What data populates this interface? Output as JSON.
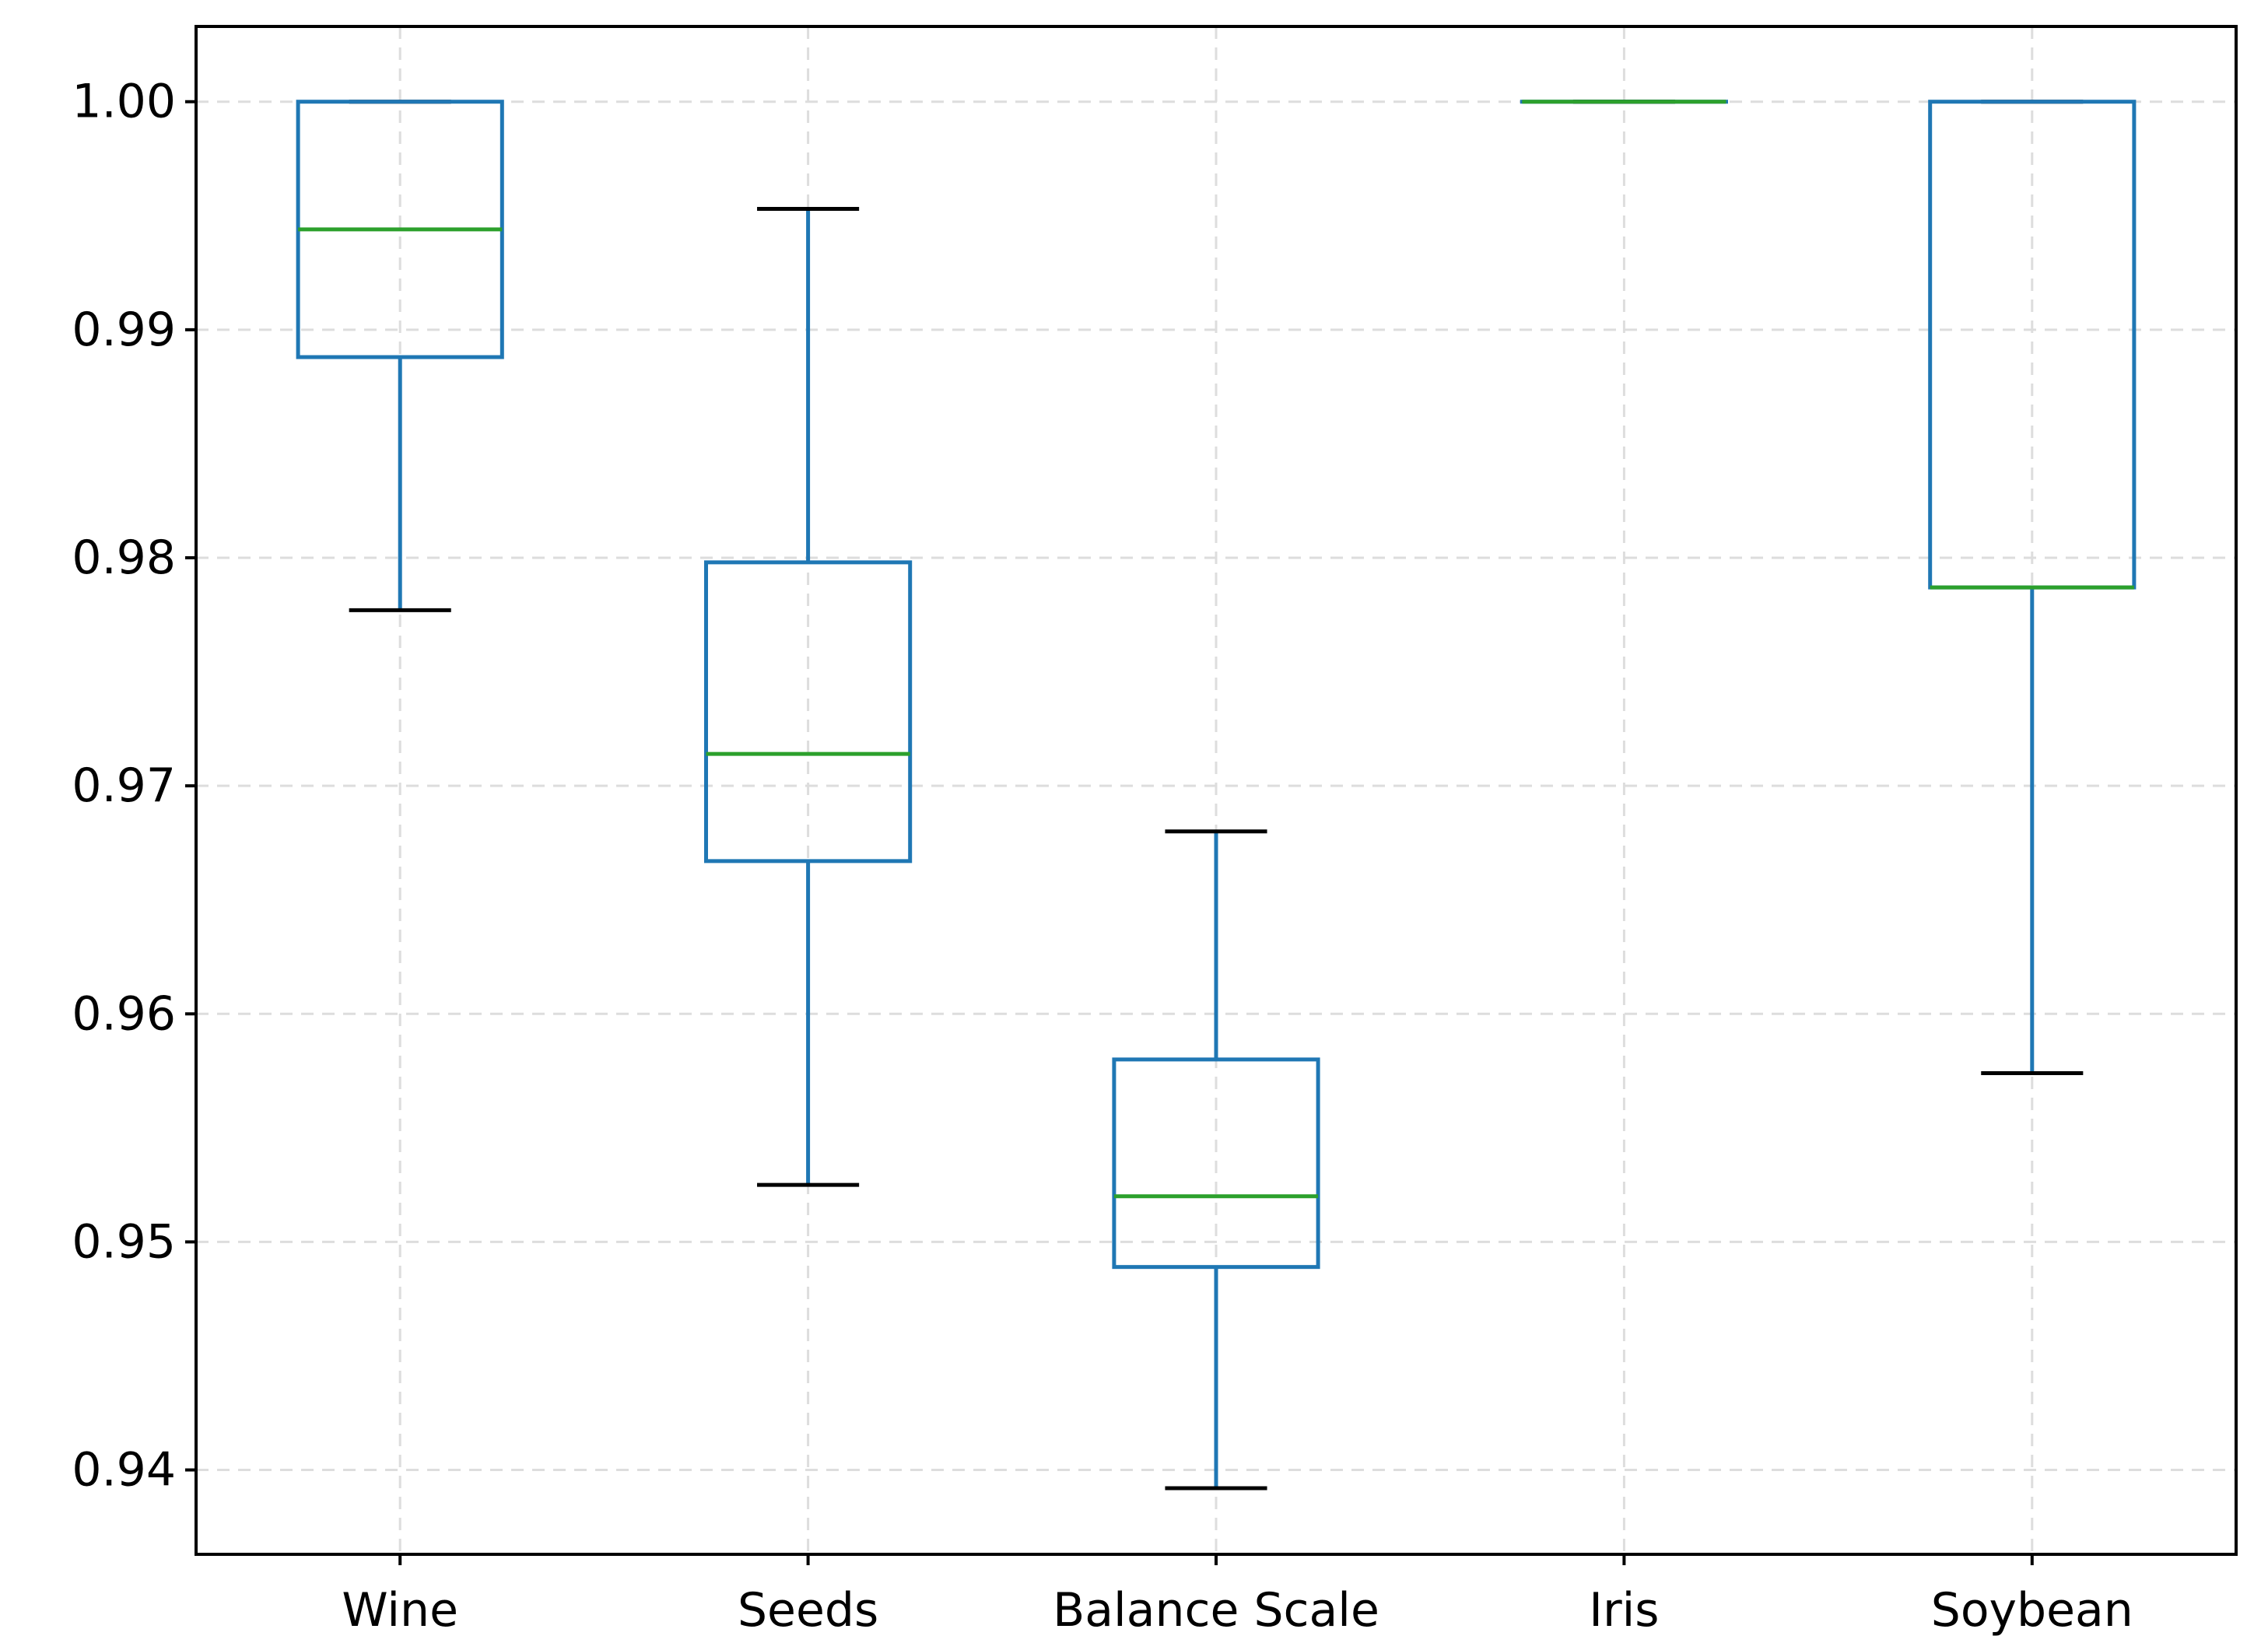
{
  "chart_data": {
    "type": "boxplot",
    "title": "",
    "xlabel": "",
    "ylabel": "",
    "categories": [
      "Wine",
      "Seeds",
      "Balance Scale",
      "Iris",
      "Soybean"
    ],
    "boxes": [
      {
        "label": "Wine",
        "whisker_low": 0.9777,
        "q1": 0.9888,
        "median": 0.9944,
        "q3": 1.0,
        "whisker_high": 1.0
      },
      {
        "label": "Seeds",
        "whisker_low": 0.9525,
        "q1": 0.9667,
        "median": 0.9714,
        "q3": 0.9798,
        "whisker_high": 0.9953
      },
      {
        "label": "Balance Scale",
        "whisker_low": 0.9392,
        "q1": 0.9489,
        "median": 0.952,
        "q3": 0.958,
        "whisker_high": 0.968
      },
      {
        "label": "Iris",
        "whisker_low": 1.0,
        "q1": 1.0,
        "median": 1.0,
        "q3": 1.0,
        "whisker_high": 1.0
      },
      {
        "label": "Soybean",
        "whisker_low": 0.9574,
        "q1": 0.9787,
        "median": 0.9787,
        "q3": 1.0,
        "whisker_high": 1.0
      }
    ],
    "yticks": [
      0.94,
      0.95,
      0.96,
      0.97,
      0.98,
      0.99,
      1.0
    ],
    "ytick_labels": [
      "0.94",
      "0.95",
      "0.96",
      "0.97",
      "0.98",
      "0.99",
      "1.00"
    ],
    "ylim": [
      0.9363,
      1.0033
    ],
    "grid": true,
    "colors": {
      "box": "#1f77b4",
      "median": "#2ca02c",
      "cap": "#000000",
      "grid": "#dddddd",
      "axes": "#000000"
    }
  }
}
